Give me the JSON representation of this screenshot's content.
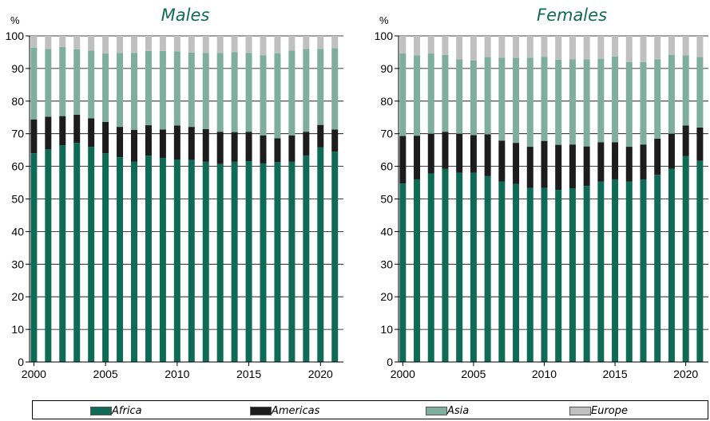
{
  "chart_data": [
    {
      "type": "stacked-bar",
      "title": "Males",
      "ylabel": "%",
      "ylim": [
        0,
        100
      ],
      "yticks": [
        0,
        10,
        20,
        30,
        40,
        50,
        60,
        70,
        80,
        90,
        100
      ],
      "xticks": [
        "2000",
        "2005",
        "2010",
        "2015",
        "2020"
      ],
      "grid": true,
      "x": [
        2000,
        2001,
        2002,
        2003,
        2004,
        2005,
        2006,
        2007,
        2008,
        2009,
        2010,
        2011,
        2012,
        2013,
        2014,
        2015,
        2016,
        2017,
        2018,
        2019,
        2020,
        2021
      ],
      "series": [
        {
          "name": "Africa",
          "color": "#0f6b55",
          "values": [
            64.0,
            65.2,
            66.5,
            67.2,
            66.0,
            64.0,
            62.8,
            61.4,
            63.3,
            62.6,
            62.1,
            62.0,
            61.4,
            60.7,
            61.4,
            61.6,
            60.9,
            61.3,
            61.4,
            63.3,
            65.8,
            64.5
          ]
        },
        {
          "name": "Americas",
          "color": "#1c1c1c",
          "values": [
            10.4,
            10.0,
            8.9,
            8.6,
            8.7,
            9.6,
            9.3,
            9.8,
            9.3,
            8.7,
            10.4,
            10.1,
            10.0,
            9.9,
            9.1,
            9.0,
            8.6,
            7.3,
            8.1,
            7.3,
            6.9,
            6.8
          ]
        },
        {
          "name": "Asia",
          "color": "#7fae9e",
          "values": [
            22.0,
            20.8,
            21.2,
            20.1,
            20.8,
            21.0,
            22.7,
            23.6,
            22.8,
            24.1,
            22.8,
            22.8,
            23.4,
            24.2,
            24.5,
            24.2,
            24.5,
            26.1,
            26.0,
            25.4,
            23.3,
            24.9
          ]
        },
        {
          "name": "Europe",
          "color": "#c0c0c0",
          "values": [
            3.6,
            4.0,
            3.4,
            4.1,
            4.5,
            5.4,
            5.2,
            5.2,
            4.6,
            4.6,
            4.7,
            5.1,
            5.2,
            5.2,
            5.0,
            5.2,
            6.0,
            5.3,
            4.5,
            4.0,
            4.0,
            3.8
          ]
        }
      ]
    },
    {
      "type": "stacked-bar",
      "title": "Females",
      "ylabel": "%",
      "ylim": [
        0,
        100
      ],
      "yticks": [
        0,
        10,
        20,
        30,
        40,
        50,
        60,
        70,
        80,
        90,
        100
      ],
      "xticks": [
        "2000",
        "2005",
        "2010",
        "2015",
        "2020"
      ],
      "grid": true,
      "x": [
        2000,
        2001,
        2002,
        2003,
        2004,
        2005,
        2006,
        2007,
        2008,
        2009,
        2010,
        2011,
        2012,
        2013,
        2014,
        2015,
        2016,
        2017,
        2018,
        2019,
        2020,
        2021
      ],
      "series": [
        {
          "name": "Africa",
          "color": "#0f6b55",
          "values": [
            54.7,
            56.0,
            57.8,
            59.2,
            58.0,
            58.0,
            57.0,
            55.3,
            54.6,
            53.4,
            53.4,
            52.8,
            53.3,
            54.0,
            55.3,
            56.0,
            55.3,
            56.0,
            57.4,
            59.3,
            63.2,
            61.7
          ]
        },
        {
          "name": "Americas",
          "color": "#1c1c1c",
          "values": [
            14.6,
            13.4,
            12.2,
            11.4,
            12.0,
            11.6,
            12.8,
            12.6,
            12.6,
            12.6,
            14.4,
            13.8,
            13.4,
            12.1,
            12.1,
            11.4,
            10.7,
            10.7,
            11.1,
            10.7,
            9.3,
            10.2
          ]
        },
        {
          "name": "Asia",
          "color": "#7fae9e",
          "values": [
            25.3,
            24.6,
            24.6,
            23.6,
            22.8,
            22.9,
            23.7,
            25.4,
            26.1,
            27.3,
            25.8,
            26.1,
            26.1,
            26.7,
            25.6,
            26.3,
            26.0,
            25.3,
            24.3,
            24.2,
            21.5,
            21.6
          ]
        },
        {
          "name": "Europe",
          "color": "#c0c0c0",
          "values": [
            5.4,
            6.0,
            5.4,
            5.8,
            7.2,
            7.5,
            6.5,
            6.7,
            6.7,
            6.7,
            6.4,
            7.3,
            7.2,
            7.2,
            7.0,
            6.3,
            8.0,
            8.0,
            7.2,
            5.8,
            6.0,
            6.5
          ]
        }
      ]
    }
  ],
  "legend": {
    "position": "bottom",
    "items": [
      {
        "label": "Africa",
        "color": "#0f6b55"
      },
      {
        "label": "Americas",
        "color": "#1c1c1c"
      },
      {
        "label": "Asia",
        "color": "#7fae9e"
      },
      {
        "label": "Europe",
        "color": "#c0c0c0"
      }
    ]
  }
}
